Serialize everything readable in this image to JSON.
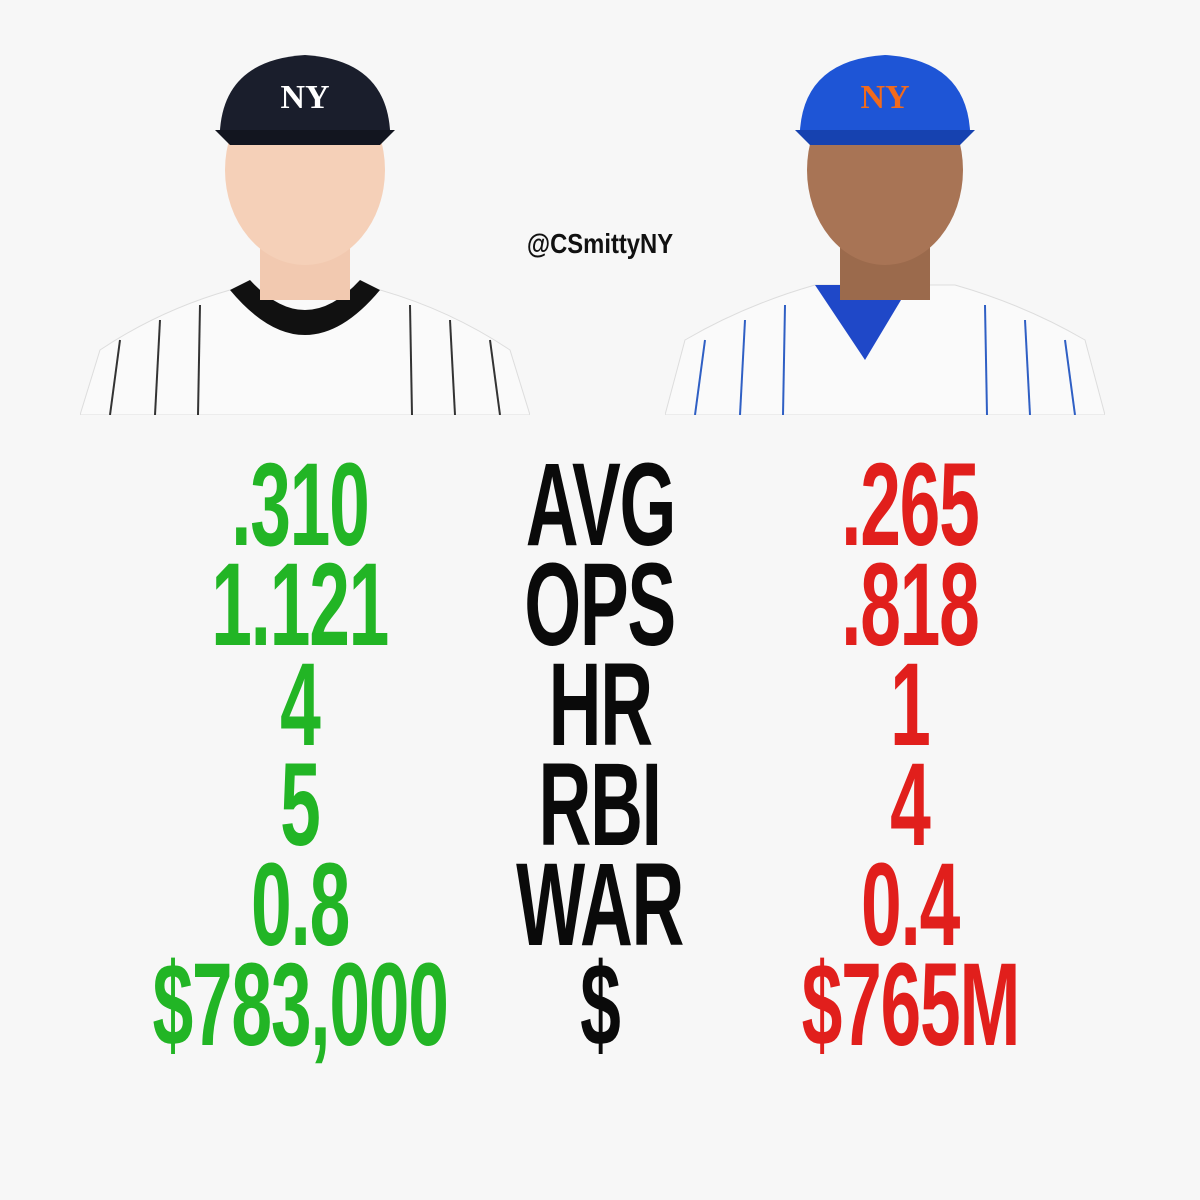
{
  "handle": "@CSmittyNY",
  "rows": [
    {
      "left": ".310",
      "label": "AVG",
      "right": ".265"
    },
    {
      "left": "1.121",
      "label": "OPS",
      "right": ".818"
    },
    {
      "left": "4",
      "label": "HR",
      "right": "1"
    },
    {
      "left": "5",
      "label": "RBI",
      "right": "4"
    },
    {
      "left": "0.8",
      "label": "WAR",
      "right": "0.4"
    },
    {
      "left": "$783,000",
      "label": "$",
      "right": "$765M"
    }
  ]
}
